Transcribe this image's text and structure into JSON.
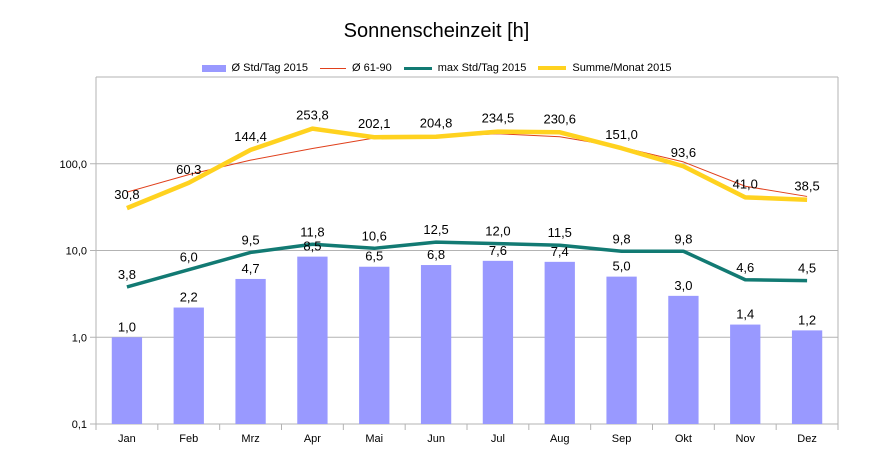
{
  "chart_data": {
    "type": "bar",
    "title": "Sonnenscheinzeit [h]",
    "xlabel": "",
    "ylabel": "",
    "y_scale": "log",
    "ylim": [
      0.1,
      1000
    ],
    "y_ticks": [
      0.1,
      1,
      10,
      100
    ],
    "y_tick_labels": [
      "0,1",
      "1,0",
      "10,0",
      "100,0"
    ],
    "grid": true,
    "legend_position": "top",
    "categories": [
      "Jan",
      "Feb",
      "Mrz",
      "Apr",
      "Mai",
      "Jun",
      "Jul",
      "Aug",
      "Sep",
      "Okt",
      "Nov",
      "Dez"
    ],
    "series": [
      {
        "name": "Ø  Std/Tag 2015",
        "kind": "bar",
        "color": "#9999ff",
        "values": [
          1.0,
          2.2,
          4.7,
          8.5,
          6.5,
          6.8,
          7.6,
          7.4,
          5.0,
          3.0,
          1.4,
          1.2
        ],
        "labels": [
          "1,0",
          "2,2",
          "4,7",
          "8,5",
          "6,5",
          "6,8",
          "7,6",
          "7,4",
          "5,0",
          "3,0",
          "1,4",
          "1,2"
        ]
      },
      {
        "name": "Ø 61-90",
        "kind": "line",
        "color": "#e0401c",
        "values": [
          47,
          75,
          110,
          150,
          198,
          205,
          222,
          205,
          155,
          105,
          55,
          42
        ]
      },
      {
        "name": "max Std/Tag 2015",
        "kind": "line",
        "color": "#127a73",
        "values": [
          3.8,
          6.0,
          9.5,
          11.8,
          10.6,
          12.5,
          12.0,
          11.5,
          9.8,
          9.8,
          4.6,
          4.5
        ],
        "labels": [
          "3,8",
          "6,0",
          "9,5",
          "11,8",
          "10,6",
          "12,5",
          "12,0",
          "11,5",
          "9,8",
          "9,8",
          "4,6",
          "4,5"
        ]
      },
      {
        "name": "Summe/Monat 2015",
        "kind": "line",
        "color": "#ffd21f",
        "values": [
          30.8,
          60.3,
          144.4,
          253.8,
          202.1,
          204.8,
          234.5,
          230.6,
          151.0,
          93.6,
          41.0,
          38.5
        ],
        "labels": [
          "30,8",
          "60,3",
          "144,4",
          "253,8",
          "202,1",
          "204,8",
          "234,5",
          "230,6",
          "151,0",
          "93,6",
          "41,0",
          "38,5"
        ]
      }
    ]
  }
}
